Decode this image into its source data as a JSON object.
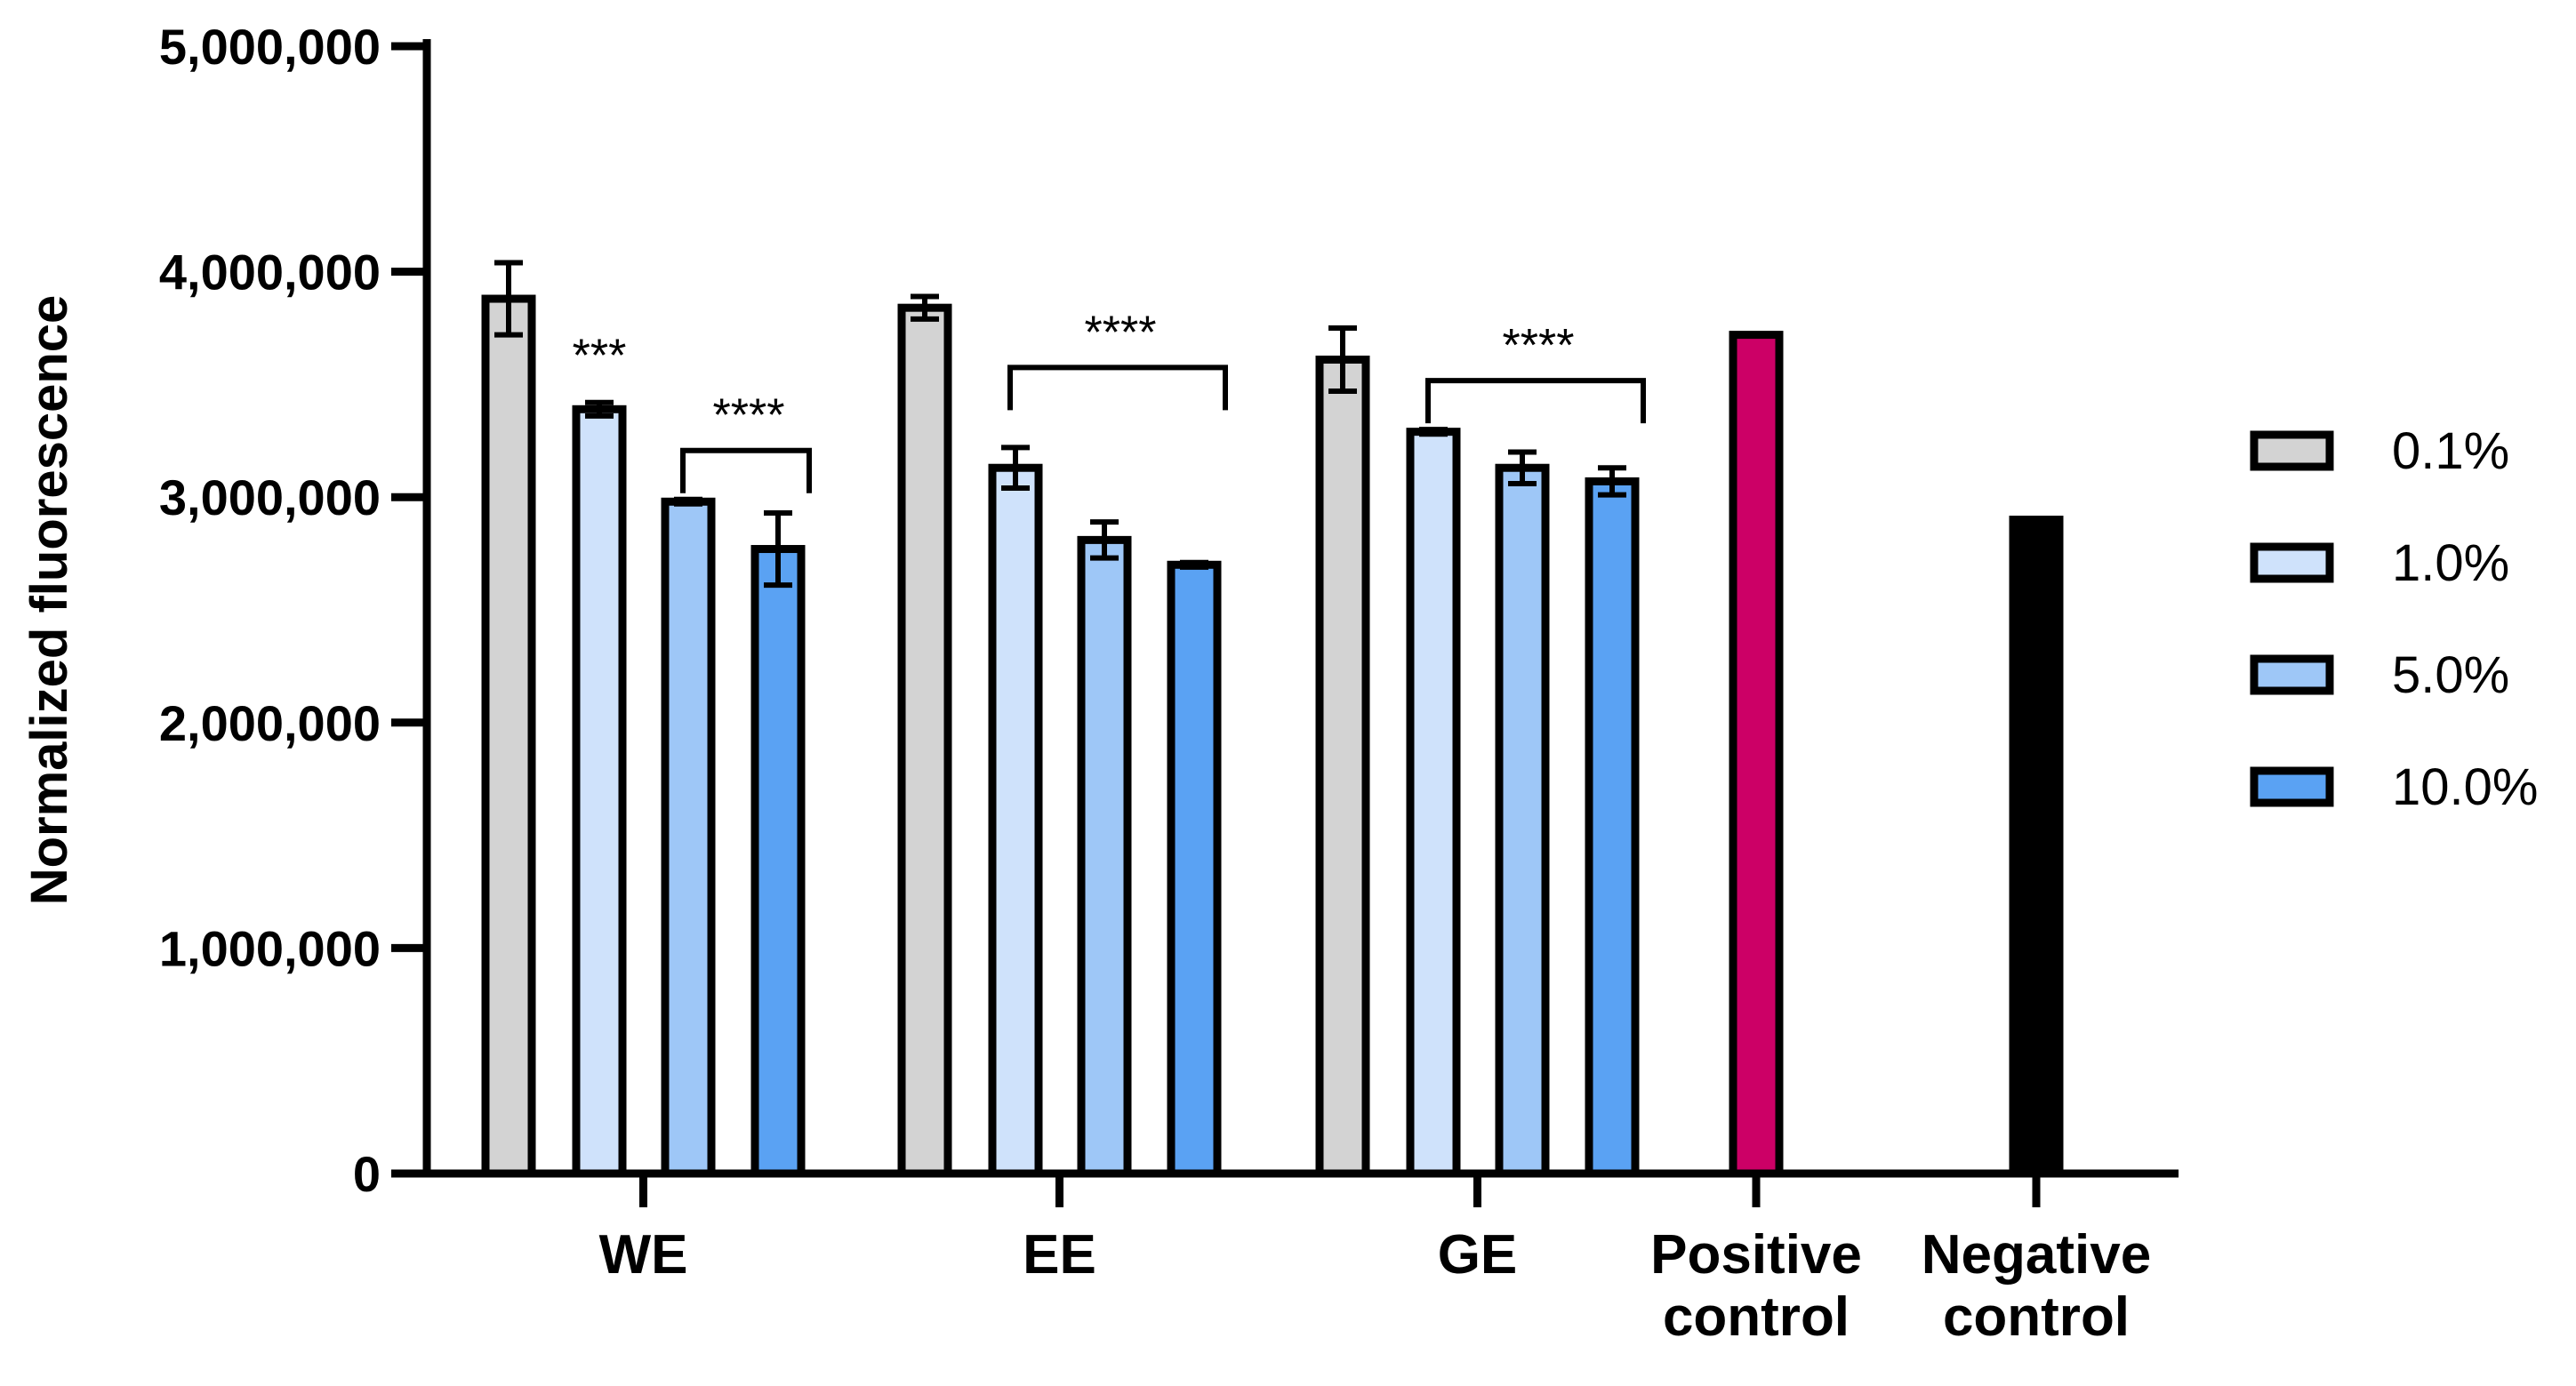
{
  "chart_data": {
    "type": "bar",
    "title": "",
    "xlabel": "",
    "ylabel": "Normalized fluorescence",
    "ylim": [
      0,
      5000000
    ],
    "yticks": [
      0,
      1000000,
      2000000,
      3000000,
      4000000,
      5000000
    ],
    "ytick_labels": [
      "0",
      "1,000,000",
      "2,000,000",
      "3,000,000",
      "4,000,000",
      "5,000,000"
    ],
    "grid": false,
    "legend_position": "right",
    "categories": [
      {
        "lines": [
          "WE"
        ]
      },
      {
        "lines": [
          "EE"
        ]
      },
      {
        "lines": [
          "GE"
        ]
      },
      {
        "lines": [
          "Positive",
          "control"
        ]
      },
      {
        "lines": [
          "Negative",
          "control"
        ]
      }
    ],
    "series": [
      {
        "name": "0.1%",
        "color": "#d3d3d3",
        "values": [
          3880000,
          3840000,
          3610000,
          null,
          null
        ],
        "errors": [
          160000,
          50000,
          140000,
          null,
          null
        ]
      },
      {
        "name": "1.0%",
        "color": "#cfe2fb",
        "values": [
          3390000,
          3130000,
          3290000,
          null,
          null
        ],
        "errors": [
          30000,
          90000,
          10000,
          null,
          null
        ]
      },
      {
        "name": "5.0%",
        "color": "#9ec7f7",
        "values": [
          2980000,
          2810000,
          3130000,
          null,
          null
        ],
        "errors": [
          10000,
          80000,
          70000,
          null,
          null
        ]
      },
      {
        "name": "10.0%",
        "color": "#5aa2f3",
        "values": [
          2770000,
          2700000,
          3070000,
          null,
          null
        ],
        "errors": [
          160000,
          10000,
          60000,
          null,
          null
        ]
      }
    ],
    "controls": [
      {
        "category": "Positive control",
        "value": 3720000,
        "color": "#cc0066"
      },
      {
        "category": "Negative control",
        "value": 2900000,
        "color": "#000000"
      }
    ],
    "annotations": [
      {
        "text": "***",
        "category": "WE",
        "bar": 1,
        "type": "label"
      },
      {
        "text": "****",
        "category": "WE",
        "bars": [
          2,
          3
        ],
        "type": "bracket"
      },
      {
        "text": "****",
        "category": "EE",
        "bars": [
          1,
          3
        ],
        "type": "bracket"
      },
      {
        "text": "****",
        "category": "GE",
        "bars": [
          1,
          3
        ],
        "type": "bracket"
      }
    ]
  }
}
